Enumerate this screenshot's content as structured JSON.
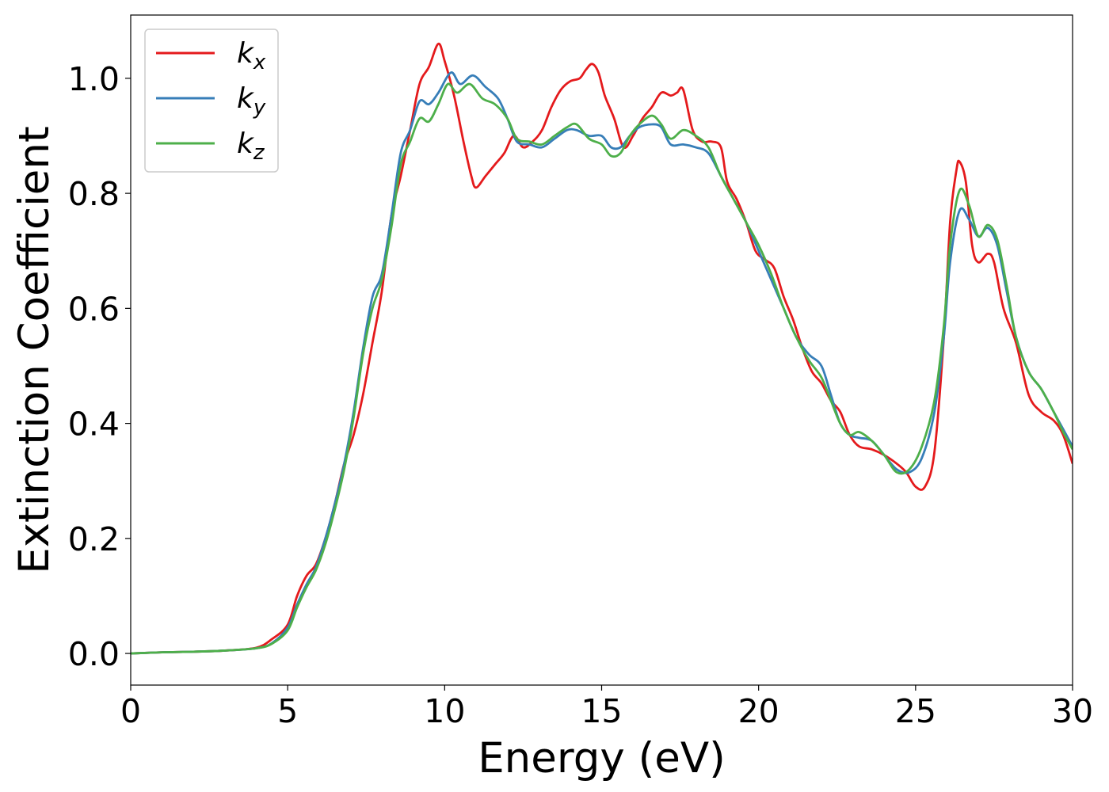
{
  "chart_data": {
    "type": "line",
    "xlabel": "Energy (eV)",
    "ylabel": "Extinction Coefficient",
    "xlim": [
      0,
      30
    ],
    "ylim": [
      -0.055,
      1.11
    ],
    "xticks": [
      0,
      5,
      10,
      15,
      20,
      25,
      30
    ],
    "xtick_labels": [
      "0",
      "5",
      "10",
      "15",
      "20",
      "25",
      "30"
    ],
    "yticks": [
      0.0,
      0.2,
      0.4,
      0.6,
      0.8,
      1.0
    ],
    "ytick_labels": [
      "0.0",
      "0.2",
      "0.4",
      "0.6",
      "0.8",
      "1.0"
    ],
    "grid": false,
    "legend_position": "top-left",
    "series": [
      {
        "name": "k_x",
        "label_base": "k",
        "label_sub": "x",
        "color": "#e41a1c",
        "points": [
          [
            0,
            0
          ],
          [
            1,
            0.002
          ],
          [
            2,
            0.003
          ],
          [
            3,
            0.005
          ],
          [
            4,
            0.01
          ],
          [
            4.5,
            0.025
          ],
          [
            5,
            0.05
          ],
          [
            5.3,
            0.1
          ],
          [
            5.6,
            0.135
          ],
          [
            5.9,
            0.155
          ],
          [
            6.2,
            0.2
          ],
          [
            6.5,
            0.26
          ],
          [
            6.8,
            0.33
          ],
          [
            7.1,
            0.38
          ],
          [
            7.4,
            0.45
          ],
          [
            7.7,
            0.54
          ],
          [
            8.0,
            0.63
          ],
          [
            8.3,
            0.76
          ],
          [
            8.6,
            0.83
          ],
          [
            8.9,
            0.91
          ],
          [
            9.2,
            0.99
          ],
          [
            9.5,
            1.02
          ],
          [
            9.8,
            1.06
          ],
          [
            10.0,
            1.03
          ],
          [
            10.3,
            0.97
          ],
          [
            10.6,
            0.89
          ],
          [
            10.85,
            0.83
          ],
          [
            11.0,
            0.81
          ],
          [
            11.3,
            0.83
          ],
          [
            11.6,
            0.85
          ],
          [
            11.9,
            0.87
          ],
          [
            12.2,
            0.9
          ],
          [
            12.5,
            0.88
          ],
          [
            12.8,
            0.89
          ],
          [
            13.1,
            0.91
          ],
          [
            13.4,
            0.95
          ],
          [
            13.7,
            0.98
          ],
          [
            14.0,
            0.995
          ],
          [
            14.3,
            1.0
          ],
          [
            14.5,
            1.015
          ],
          [
            14.7,
            1.025
          ],
          [
            14.9,
            1.01
          ],
          [
            15.1,
            0.97
          ],
          [
            15.4,
            0.93
          ],
          [
            15.7,
            0.88
          ],
          [
            16.0,
            0.9
          ],
          [
            16.3,
            0.93
          ],
          [
            16.6,
            0.95
          ],
          [
            16.9,
            0.975
          ],
          [
            17.2,
            0.97
          ],
          [
            17.4,
            0.975
          ],
          [
            17.6,
            0.98
          ],
          [
            17.9,
            0.91
          ],
          [
            18.2,
            0.89
          ],
          [
            18.5,
            0.89
          ],
          [
            18.8,
            0.88
          ],
          [
            19.0,
            0.82
          ],
          [
            19.3,
            0.79
          ],
          [
            19.6,
            0.75
          ],
          [
            19.9,
            0.7
          ],
          [
            20.2,
            0.685
          ],
          [
            20.5,
            0.67
          ],
          [
            20.8,
            0.62
          ],
          [
            21.1,
            0.58
          ],
          [
            21.4,
            0.53
          ],
          [
            21.7,
            0.49
          ],
          [
            22.0,
            0.47
          ],
          [
            22.3,
            0.44
          ],
          [
            22.6,
            0.42
          ],
          [
            22.9,
            0.38
          ],
          [
            23.2,
            0.36
          ],
          [
            23.6,
            0.355
          ],
          [
            24.0,
            0.345
          ],
          [
            24.4,
            0.33
          ],
          [
            24.7,
            0.315
          ],
          [
            25.0,
            0.29
          ],
          [
            25.3,
            0.29
          ],
          [
            25.6,
            0.35
          ],
          [
            25.9,
            0.55
          ],
          [
            26.1,
            0.75
          ],
          [
            26.3,
            0.84
          ],
          [
            26.4,
            0.855
          ],
          [
            26.6,
            0.82
          ],
          [
            26.8,
            0.71
          ],
          [
            27.0,
            0.68
          ],
          [
            27.3,
            0.695
          ],
          [
            27.5,
            0.68
          ],
          [
            27.8,
            0.6
          ],
          [
            28.2,
            0.54
          ],
          [
            28.6,
            0.45
          ],
          [
            29.0,
            0.42
          ],
          [
            29.4,
            0.405
          ],
          [
            29.7,
            0.38
          ],
          [
            30.0,
            0.33
          ]
        ]
      },
      {
        "name": "k_y",
        "label_base": "k",
        "label_sub": "y",
        "color": "#377eb8",
        "points": [
          [
            0,
            0
          ],
          [
            1,
            0.002
          ],
          [
            2,
            0.003
          ],
          [
            3,
            0.005
          ],
          [
            4,
            0.009
          ],
          [
            4.5,
            0.018
          ],
          [
            5,
            0.045
          ],
          [
            5.3,
            0.085
          ],
          [
            5.6,
            0.12
          ],
          [
            5.9,
            0.15
          ],
          [
            6.2,
            0.2
          ],
          [
            6.5,
            0.26
          ],
          [
            6.8,
            0.33
          ],
          [
            7.1,
            0.42
          ],
          [
            7.4,
            0.53
          ],
          [
            7.7,
            0.62
          ],
          [
            8.0,
            0.66
          ],
          [
            8.3,
            0.76
          ],
          [
            8.6,
            0.87
          ],
          [
            8.9,
            0.91
          ],
          [
            9.2,
            0.96
          ],
          [
            9.5,
            0.955
          ],
          [
            9.8,
            0.975
          ],
          [
            10.2,
            1.01
          ],
          [
            10.5,
            0.99
          ],
          [
            10.9,
            1.005
          ],
          [
            11.3,
            0.985
          ],
          [
            11.7,
            0.965
          ],
          [
            12.0,
            0.93
          ],
          [
            12.3,
            0.89
          ],
          [
            12.7,
            0.885
          ],
          [
            13.1,
            0.88
          ],
          [
            13.5,
            0.895
          ],
          [
            13.9,
            0.91
          ],
          [
            14.2,
            0.91
          ],
          [
            14.6,
            0.9
          ],
          [
            15.0,
            0.9
          ],
          [
            15.3,
            0.88
          ],
          [
            15.6,
            0.88
          ],
          [
            15.9,
            0.9
          ],
          [
            16.2,
            0.915
          ],
          [
            16.6,
            0.92
          ],
          [
            16.9,
            0.915
          ],
          [
            17.2,
            0.885
          ],
          [
            17.6,
            0.885
          ],
          [
            18.0,
            0.88
          ],
          [
            18.4,
            0.87
          ],
          [
            18.8,
            0.83
          ],
          [
            19.2,
            0.79
          ],
          [
            19.6,
            0.75
          ],
          [
            20.0,
            0.7
          ],
          [
            20.4,
            0.65
          ],
          [
            20.8,
            0.6
          ],
          [
            21.2,
            0.55
          ],
          [
            21.6,
            0.52
          ],
          [
            22.0,
            0.5
          ],
          [
            22.3,
            0.45
          ],
          [
            22.6,
            0.4
          ],
          [
            22.9,
            0.38
          ],
          [
            23.2,
            0.375
          ],
          [
            23.6,
            0.37
          ],
          [
            24.0,
            0.345
          ],
          [
            24.4,
            0.32
          ],
          [
            24.8,
            0.315
          ],
          [
            25.2,
            0.34
          ],
          [
            25.6,
            0.42
          ],
          [
            25.9,
            0.55
          ],
          [
            26.1,
            0.68
          ],
          [
            26.4,
            0.77
          ],
          [
            26.7,
            0.755
          ],
          [
            27.0,
            0.725
          ],
          [
            27.3,
            0.74
          ],
          [
            27.6,
            0.71
          ],
          [
            27.9,
            0.63
          ],
          [
            28.2,
            0.55
          ],
          [
            28.6,
            0.49
          ],
          [
            29.0,
            0.46
          ],
          [
            29.4,
            0.42
          ],
          [
            29.7,
            0.39
          ],
          [
            30.0,
            0.36
          ]
        ]
      },
      {
        "name": "k_z",
        "label_base": "k",
        "label_sub": "z",
        "color": "#4daf4a",
        "points": [
          [
            0,
            0
          ],
          [
            1,
            0.002
          ],
          [
            2,
            0.003
          ],
          [
            3,
            0.005
          ],
          [
            4,
            0.009
          ],
          [
            4.5,
            0.017
          ],
          [
            5,
            0.04
          ],
          [
            5.3,
            0.08
          ],
          [
            5.6,
            0.115
          ],
          [
            5.9,
            0.145
          ],
          [
            6.2,
            0.19
          ],
          [
            6.5,
            0.25
          ],
          [
            6.8,
            0.32
          ],
          [
            7.1,
            0.41
          ],
          [
            7.4,
            0.52
          ],
          [
            7.7,
            0.6
          ],
          [
            8.0,
            0.65
          ],
          [
            8.3,
            0.74
          ],
          [
            8.6,
            0.85
          ],
          [
            8.9,
            0.89
          ],
          [
            9.2,
            0.93
          ],
          [
            9.5,
            0.925
          ],
          [
            9.8,
            0.955
          ],
          [
            10.1,
            0.99
          ],
          [
            10.4,
            0.975
          ],
          [
            10.8,
            0.99
          ],
          [
            11.2,
            0.965
          ],
          [
            11.6,
            0.955
          ],
          [
            12.0,
            0.93
          ],
          [
            12.3,
            0.895
          ],
          [
            12.7,
            0.89
          ],
          [
            13.1,
            0.885
          ],
          [
            13.5,
            0.9
          ],
          [
            13.9,
            0.915
          ],
          [
            14.2,
            0.92
          ],
          [
            14.6,
            0.895
          ],
          [
            15.0,
            0.885
          ],
          [
            15.3,
            0.865
          ],
          [
            15.6,
            0.87
          ],
          [
            15.9,
            0.9
          ],
          [
            16.2,
            0.92
          ],
          [
            16.6,
            0.935
          ],
          [
            16.9,
            0.92
          ],
          [
            17.2,
            0.895
          ],
          [
            17.6,
            0.91
          ],
          [
            18.0,
            0.9
          ],
          [
            18.4,
            0.88
          ],
          [
            18.8,
            0.83
          ],
          [
            19.2,
            0.79
          ],
          [
            19.6,
            0.75
          ],
          [
            20.0,
            0.71
          ],
          [
            20.4,
            0.66
          ],
          [
            20.8,
            0.6
          ],
          [
            21.2,
            0.55
          ],
          [
            21.6,
            0.51
          ],
          [
            22.0,
            0.48
          ],
          [
            22.3,
            0.44
          ],
          [
            22.6,
            0.4
          ],
          [
            22.9,
            0.38
          ],
          [
            23.2,
            0.385
          ],
          [
            23.6,
            0.37
          ],
          [
            24.0,
            0.345
          ],
          [
            24.4,
            0.315
          ],
          [
            24.8,
            0.32
          ],
          [
            25.2,
            0.36
          ],
          [
            25.6,
            0.44
          ],
          [
            25.9,
            0.57
          ],
          [
            26.1,
            0.71
          ],
          [
            26.4,
            0.805
          ],
          [
            26.7,
            0.78
          ],
          [
            27.0,
            0.725
          ],
          [
            27.3,
            0.745
          ],
          [
            27.6,
            0.72
          ],
          [
            27.9,
            0.64
          ],
          [
            28.2,
            0.55
          ],
          [
            28.6,
            0.49
          ],
          [
            29.0,
            0.46
          ],
          [
            29.4,
            0.42
          ],
          [
            29.7,
            0.385
          ],
          [
            30.0,
            0.355
          ]
        ]
      }
    ]
  }
}
